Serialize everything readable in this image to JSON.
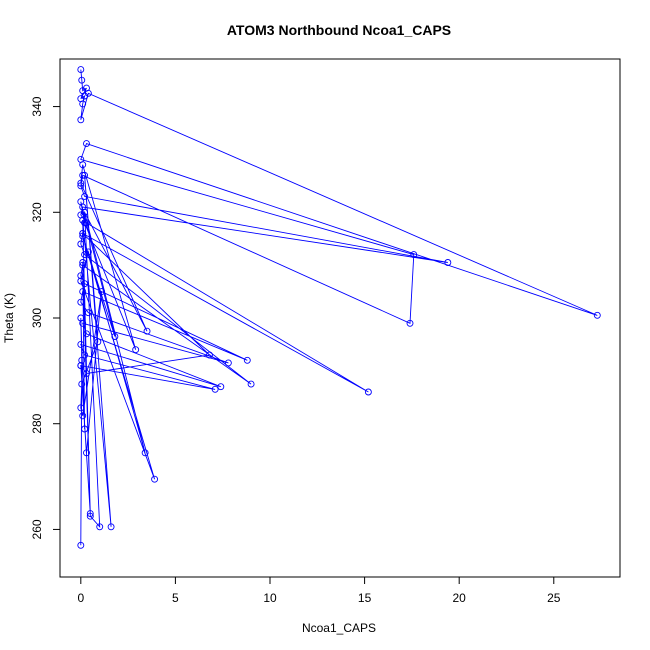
{
  "chart_data": {
    "type": "line",
    "title": "ATOM3 Northbound Ncoa1_CAPS",
    "xlabel": "Ncoa1_CAPS",
    "ylabel": "Theta (K)",
    "xlim": [
      -1.1,
      28.5
    ],
    "ylim": [
      251,
      349
    ],
    "xticks": [
      0,
      5,
      10,
      15,
      20,
      25
    ],
    "yticks": [
      260,
      280,
      300,
      320,
      340
    ],
    "grid": false,
    "legend": "none",
    "color": "#0000ff",
    "series": [
      {
        "x": [
          0.0,
          0.05,
          0.1,
          0.3,
          0.0,
          0.2,
          0.1,
          0.0,
          0.4,
          27.3,
          0.3,
          0.0,
          17.6,
          17.4,
          0.1,
          0.0,
          0.2,
          19.4,
          0.1,
          0.0,
          0.3,
          15.2,
          0.1,
          0.0,
          0.2,
          9.0,
          0.1,
          0.0,
          0.2,
          8.8,
          0.1,
          0.0,
          0.4,
          7.8,
          0.1,
          0.3,
          7.4,
          0.0,
          0.2,
          7.1,
          0.0,
          0.3,
          6.8,
          0.1,
          0.2,
          3.5,
          0.0,
          0.1,
          2.9,
          0.2,
          0.0,
          1.8,
          0.1,
          3.9,
          0.0,
          0.4,
          3.4,
          0.2,
          1.0,
          0.5,
          0.1,
          1.6,
          0.2,
          0.9,
          0.05,
          0.0,
          0.1,
          1.1,
          0.3,
          0.0,
          0.5,
          0.1,
          0.2,
          0.0,
          0.05,
          0.0
        ],
        "y": [
          347.0,
          345.0,
          343.0,
          343.5,
          341.5,
          342.0,
          340.5,
          337.5,
          342.5,
          300.5,
          333.0,
          330.0,
          312.0,
          299.0,
          327.0,
          325.0,
          323.0,
          310.5,
          321.0,
          319.5,
          318.0,
          286.0,
          316.0,
          314.0,
          312.0,
          287.5,
          310.0,
          308.0,
          306.5,
          292.0,
          305.0,
          303.0,
          301.0,
          291.5,
          299.0,
          297.0,
          287.0,
          295.0,
          293.0,
          286.5,
          291.0,
          289.5,
          293.0,
          316.0,
          320.0,
          297.5,
          325.5,
          329.0,
          294.0,
          318.0,
          322.0,
          296.5,
          315.5,
          269.5,
          307.0,
          312.5,
          274.5,
          320.0,
          260.5,
          262.5,
          318.5,
          260.5,
          327.0,
          295.5,
          287.5,
          283.0,
          281.5,
          305.0,
          274.5,
          291.0,
          263.0,
          310.5,
          279.0,
          300.0,
          292.0,
          257.0
        ]
      }
    ]
  }
}
